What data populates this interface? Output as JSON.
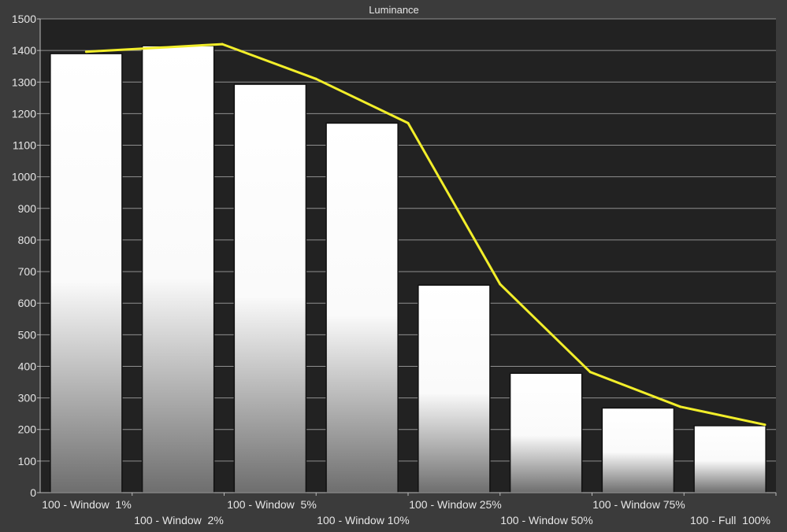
{
  "chart_data": {
    "type": "bar",
    "title": "Luminance",
    "xlabel": "",
    "ylabel": "",
    "ylim": [
      0,
      1500
    ],
    "yticks": [
      0,
      100,
      200,
      300,
      400,
      500,
      600,
      700,
      800,
      900,
      1000,
      1100,
      1200,
      1300,
      1400,
      1500
    ],
    "grid": true,
    "categories": [
      "100 - Window  1%",
      "100 - Window  2%",
      "100 - Window  5%",
      "100 - Window 10%",
      "100 - Window 25%",
      "100 - Window 50%",
      "100 - Window 75%",
      "100 - Full  100%"
    ],
    "series": [
      {
        "type": "bar",
        "values": [
          1390,
          1415,
          1293,
          1170,
          657,
          378,
          268,
          212
        ]
      },
      {
        "type": "line",
        "values": [
          1396,
          1420,
          1310,
          1170,
          660,
          382,
          272,
          215
        ]
      }
    ],
    "colors": {
      "background": "#3b3b3b",
      "plot_background": "#222222",
      "bar_top": "#ffffff",
      "bar_bottom": "#6e6e6e",
      "line": "#f2ee2a"
    }
  }
}
